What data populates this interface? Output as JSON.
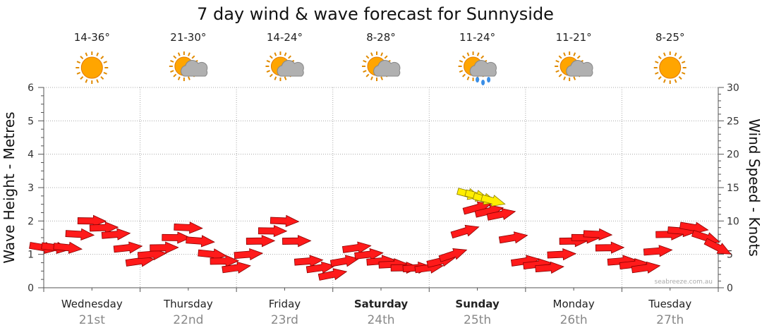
{
  "title": "7 day wind & wave forecast for Sunnyside",
  "credit": "seabreeze.com.au",
  "days": [
    {
      "name": "Wednesday",
      "date": "21st",
      "temp": "14-36°",
      "icon": "sun-icon",
      "bold": false
    },
    {
      "name": "Thursday",
      "date": "22nd",
      "temp": "21-30°",
      "icon": "sun-cloud-icon",
      "bold": false
    },
    {
      "name": "Friday",
      "date": "23rd",
      "temp": "14-24°",
      "icon": "sun-cloud-icon",
      "bold": false
    },
    {
      "name": "Saturday",
      "date": "24th",
      "temp": "8-28°",
      "icon": "sun-cloud-icon",
      "bold": true
    },
    {
      "name": "Sunday",
      "date": "25th",
      "temp": "11-24°",
      "icon": "sun-cloud-rain-icon",
      "bold": true
    },
    {
      "name": "Monday",
      "date": "26th",
      "temp": "11-21°",
      "icon": "sun-cloud-icon",
      "bold": false
    },
    {
      "name": "Tuesday",
      "date": "27th",
      "temp": "8-25°",
      "icon": "sun-icon",
      "bold": false
    }
  ],
  "colors": {
    "arrow_normal": "#ff1a1a",
    "arrow_strong": "#ffee00",
    "sun": "#ffa500",
    "cloud": "#b0b0b0",
    "rain": "#3a8ee6"
  },
  "chart_data": {
    "type": "line",
    "title": "7 day wind & wave forecast for Sunnyside",
    "ylabel_left": "Wave Height - Metres",
    "ylabel_right": "Wind Speed - Knots",
    "ylim_left": [
      0,
      6
    ],
    "ylim_right": [
      0,
      30
    ],
    "yticks_left": [
      "0",
      "1",
      "2",
      "3",
      "4",
      "5",
      "6"
    ],
    "yticks_right": [
      "0",
      "5",
      "10",
      "15",
      "20",
      "25",
      "30"
    ],
    "grid": true,
    "x_unit": "hours from Wednesday 00:00",
    "series": [
      {
        "name": "Wind Speed - Knots",
        "x": [
          0,
          6,
          12,
          18,
          24,
          30,
          36,
          42,
          48,
          54,
          60,
          66,
          72,
          78,
          84,
          90,
          96,
          102,
          108,
          114,
          120,
          126,
          132,
          138,
          144,
          150,
          156,
          162,
          168
        ],
        "values": [
          6,
          6,
          10,
          8,
          4,
          6,
          9,
          5,
          3,
          7,
          10,
          4,
          2,
          6,
          4,
          3,
          3,
          5,
          12,
          11,
          4,
          3,
          7,
          8,
          4,
          3,
          8,
          9,
          6
        ]
      },
      {
        "name": "Wind Direction",
        "x": [
          0,
          6,
          12,
          18,
          24,
          30,
          36,
          42,
          48,
          54,
          60,
          66,
          72,
          78,
          84,
          90,
          96,
          102,
          108,
          114,
          120,
          126,
          132,
          138,
          144,
          150,
          156,
          162,
          168
        ],
        "values": [
          200,
          210,
          225,
          240,
          250,
          230,
          220,
          210,
          250,
          230,
          220,
          240,
          260,
          250,
          240,
          230,
          250,
          280,
          270,
          260,
          250,
          240,
          230,
          220,
          240,
          250,
          230,
          200,
          150
        ]
      }
    ],
    "strong_segments": [
      {
        "x": [
          106,
          112
        ],
        "values": [
          14,
          13
        ]
      }
    ]
  }
}
